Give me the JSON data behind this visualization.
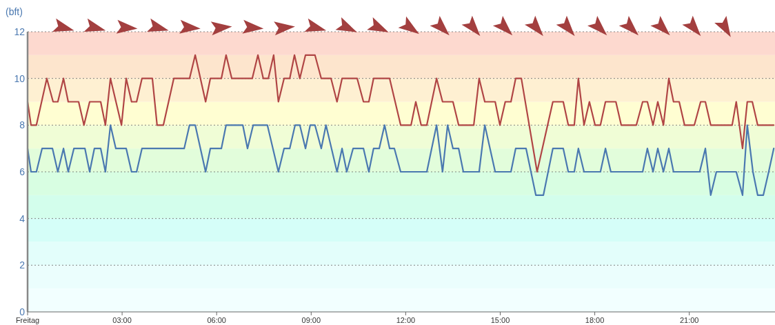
{
  "chart_data": {
    "type": "line",
    "ylabel": "(bft)",
    "xlim": [
      0,
      23.72
    ],
    "xticks": [
      {
        "value": 0,
        "label": "Freitag"
      },
      {
        "value": 3,
        "label": "03:00"
      },
      {
        "value": 6,
        "label": "06:00"
      },
      {
        "value": 9,
        "label": "09:00"
      },
      {
        "value": 12,
        "label": "12:00"
      },
      {
        "value": 15,
        "label": "15:00"
      },
      {
        "value": 18,
        "label": "18:00"
      },
      {
        "value": 21,
        "label": "21:00"
      }
    ],
    "ylim": [
      0,
      12
    ],
    "yticks": [
      0,
      2,
      4,
      6,
      8,
      10,
      12
    ],
    "grid": "y",
    "marker": "none",
    "line_style": "solid",
    "bands": [
      {
        "axis": "y",
        "from": 0,
        "to": 1,
        "color": "#f2ffff"
      },
      {
        "axis": "y",
        "from": 1,
        "to": 2,
        "color": "#ebfefd"
      },
      {
        "axis": "y",
        "from": 2,
        "to": 3,
        "color": "#e3fefb"
      },
      {
        "axis": "y",
        "from": 3,
        "to": 4,
        "color": "#d5fef8"
      },
      {
        "axis": "y",
        "from": 4,
        "to": 5,
        "color": "#d3feec"
      },
      {
        "axis": "y",
        "from": 5,
        "to": 6,
        "color": "#d8fee2"
      },
      {
        "axis": "y",
        "from": 6,
        "to": 7,
        "color": "#e2fddb"
      },
      {
        "axis": "y",
        "from": 7,
        "to": 8,
        "color": "#f0fdd6"
      },
      {
        "axis": "y",
        "from": 8,
        "to": 9,
        "color": "#fffed2"
      },
      {
        "axis": "y",
        "from": 9,
        "to": 10,
        "color": "#fef0d2"
      },
      {
        "axis": "y",
        "from": 10,
        "to": 11,
        "color": "#fde5cd"
      },
      {
        "axis": "y",
        "from": 11,
        "to": 12,
        "color": "#fdd9cf"
      }
    ],
    "series": [
      {
        "color": "#b04545",
        "x": [
          0,
          0.11,
          0.28,
          0.61,
          0.81,
          0.96,
          1.14,
          1.29,
          1.62,
          1.79,
          1.97,
          2.32,
          2.47,
          2.63,
          2.98,
          3.13,
          3.3,
          3.46,
          3.63,
          3.96,
          4.11,
          4.31,
          4.64,
          5.14,
          5.32,
          5.65,
          5.8,
          6.15,
          6.3,
          6.48,
          7.13,
          7.31,
          7.48,
          7.64,
          7.81,
          7.96,
          8.14,
          8.32,
          8.47,
          8.64,
          8.82,
          9.12,
          9.32,
          9.63,
          9.82,
          9.98,
          10.46,
          10.66,
          10.83,
          10.98,
          11.49,
          11.84,
          12.17,
          12.32,
          12.49,
          12.67,
          12.98,
          13.17,
          13.5,
          13.68,
          14.16,
          14.33,
          14.51,
          14.84,
          14.99,
          15.16,
          15.34,
          15.49,
          15.67,
          16.17,
          16.67,
          17,
          17.16,
          17.35,
          17.48,
          17.66,
          17.83,
          18.01,
          18.18,
          18.34,
          18.67,
          18.84,
          19.32,
          19.52,
          19.67,
          19.85,
          20,
          20.18,
          20.35,
          20.5,
          20.68,
          20.85,
          21.16,
          21.36,
          21.51,
          21.68,
          22.36,
          22.49,
          22.69,
          22.84,
          23,
          23.17,
          23.68
        ],
        "values": [
          9,
          8,
          8,
          10,
          9,
          9,
          10,
          9,
          9,
          8,
          9,
          9,
          8,
          10,
          8,
          10,
          9,
          9,
          10,
          10,
          8,
          8,
          10,
          10,
          11,
          9,
          10,
          10,
          11,
          10,
          10,
          11,
          10,
          10,
          11,
          9,
          10,
          10,
          11,
          10,
          11,
          11,
          10,
          10,
          9,
          10,
          10,
          9,
          9,
          10,
          10,
          8,
          8,
          9,
          8,
          8,
          10,
          9,
          9,
          8,
          8,
          10,
          9,
          9,
          8,
          9,
          9,
          10,
          10,
          6,
          9,
          9,
          8,
          8,
          10,
          8,
          9,
          8,
          8,
          9,
          9,
          8,
          8,
          9,
          9,
          8,
          9,
          8,
          10,
          9,
          9,
          8,
          8,
          9,
          9,
          8,
          8,
          9,
          7,
          9,
          9,
          8,
          8
        ]
      },
      {
        "color": "#4a78b0",
        "x": [
          0,
          0.11,
          0.28,
          0.46,
          0.79,
          0.96,
          1.14,
          1.29,
          1.47,
          1.82,
          1.97,
          2.12,
          2.32,
          2.47,
          2.63,
          2.8,
          3.13,
          3.3,
          3.46,
          3.63,
          4.97,
          5.14,
          5.32,
          5.65,
          5.8,
          6.15,
          6.3,
          6.83,
          6.98,
          7.16,
          7.61,
          7.96,
          8.14,
          8.32,
          8.49,
          8.64,
          8.82,
          8.97,
          9.12,
          9.32,
          9.47,
          9.82,
          9.98,
          10.13,
          10.33,
          10.66,
          10.83,
          10.98,
          11.16,
          11.33,
          11.49,
          11.64,
          11.84,
          12.67,
          12.98,
          13.17,
          13.33,
          13.5,
          13.68,
          13.83,
          14.33,
          14.51,
          14.84,
          15.34,
          15.49,
          15.82,
          16.13,
          16.37,
          16.67,
          17,
          17.16,
          17.35,
          17.48,
          17.66,
          18.18,
          18.34,
          18.51,
          19.52,
          19.67,
          19.85,
          20,
          20.18,
          20.35,
          20.5,
          21.33,
          21.51,
          21.68,
          21.86,
          22.49,
          22.69,
          22.84,
          23.02,
          23.17,
          23.35,
          23.52,
          23.68
        ],
        "values": [
          7,
          6,
          6,
          7,
          7,
          6,
          7,
          6,
          7,
          7,
          6,
          7,
          7,
          6,
          8,
          7,
          7,
          6,
          6,
          7,
          7,
          8,
          8,
          6,
          7,
          7,
          8,
          8,
          7,
          8,
          8,
          6,
          7,
          7,
          8,
          8,
          7,
          8,
          8,
          7,
          8,
          6,
          7,
          6,
          7,
          7,
          6,
          7,
          7,
          8,
          7,
          7,
          6,
          6,
          8,
          6,
          8,
          7,
          7,
          6,
          6,
          8,
          6,
          6,
          7,
          7,
          5,
          5,
          7,
          7,
          6,
          6,
          7,
          6,
          6,
          7,
          6,
          6,
          7,
          6,
          7,
          6,
          7,
          6,
          6,
          7,
          5,
          6,
          6,
          5,
          8,
          6,
          5,
          5,
          6,
          7
        ]
      }
    ]
  }
}
